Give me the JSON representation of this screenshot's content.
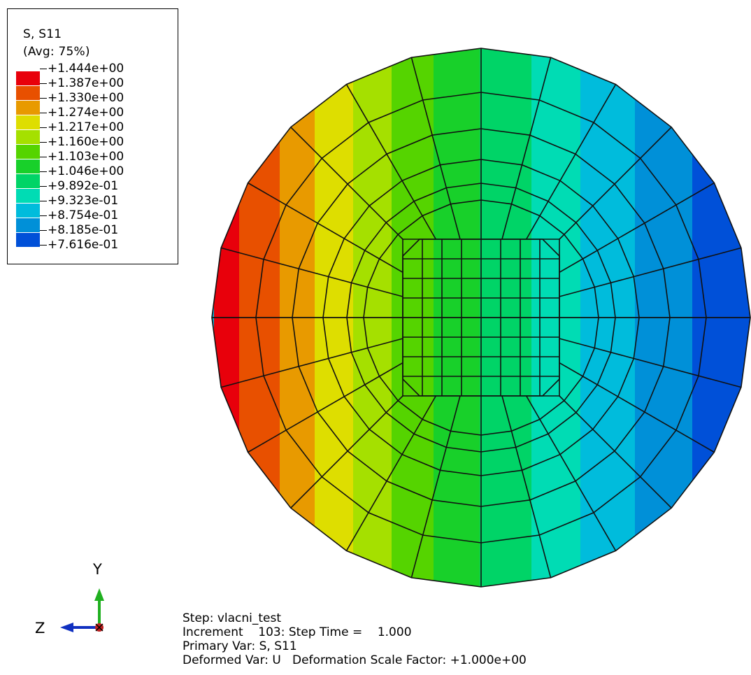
{
  "legend": {
    "title": "S, S11",
    "subtitle": "(Avg: 75%)",
    "entries": [
      {
        "value": "+1.444e+00",
        "color": "#e8000b"
      },
      {
        "value": "+1.387e+00",
        "color": "#e85000"
      },
      {
        "value": "+1.330e+00",
        "color": "#e89a00"
      },
      {
        "value": "+1.274e+00",
        "color": "#dede00"
      },
      {
        "value": "+1.217e+00",
        "color": "#a5e000"
      },
      {
        "value": "+1.160e+00",
        "color": "#55d400"
      },
      {
        "value": "+1.103e+00",
        "color": "#18d02a"
      },
      {
        "value": "+1.046e+00",
        "color": "#00d467"
      },
      {
        "value": "+9.892e-01",
        "color": "#00dcb4"
      },
      {
        "value": "+9.323e-01",
        "color": "#00bcdc"
      },
      {
        "value": "+8.754e-01",
        "color": "#0090d8"
      },
      {
        "value": "+8.185e-01",
        "color": "#0050d8"
      },
      {
        "value": "+7.616e-01",
        "color": "#0010d8"
      }
    ]
  },
  "triad": {
    "y_label": "Y",
    "z_label": "Z",
    "y_color": "#20b020",
    "z_color": "#1030c0",
    "x_color": "#c02020"
  },
  "info": {
    "line1": "Step: vlacni_test",
    "line2": "Increment    103: Step Time =    1.000",
    "line3": "Primary Var: S, S11",
    "line4": "Deformed Var: U   Deformation Scale Factor: +1.000e+00"
  }
}
